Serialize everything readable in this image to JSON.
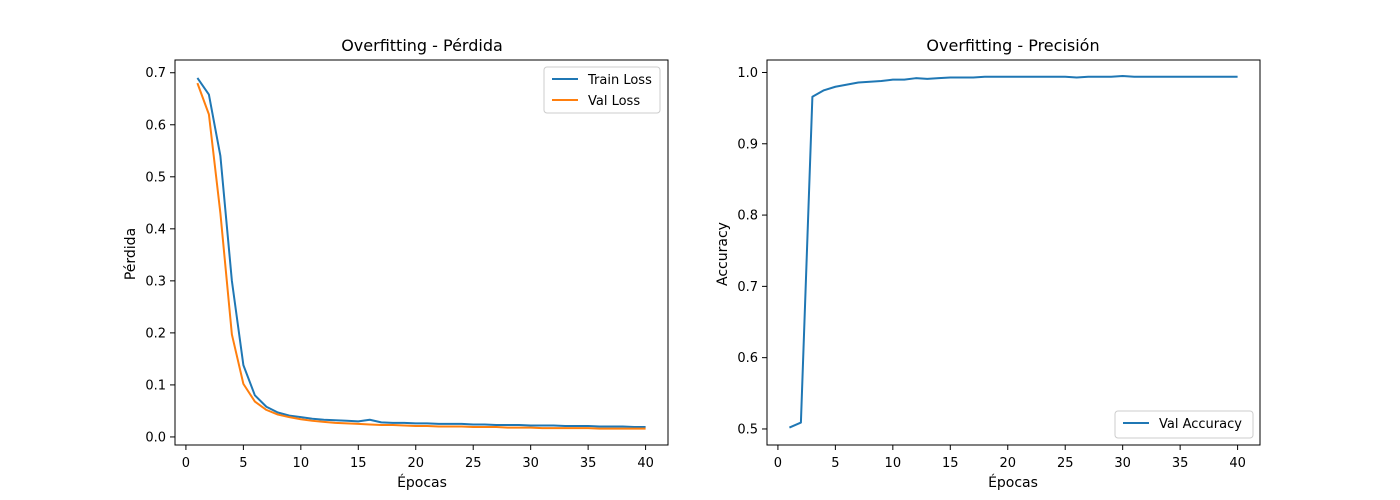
{
  "chart_data": [
    {
      "type": "line",
      "title": "Overfitting - Pérdida",
      "xlabel": "Épocas",
      "ylabel": "Pérdida",
      "xlim": [
        -0.95,
        41.95
      ],
      "ylim": [
        -0.0155,
        0.7245
      ],
      "xticks": [
        "0",
        "5",
        "10",
        "15",
        "20",
        "25",
        "30",
        "35",
        "40"
      ],
      "yticks": [
        "0.0",
        "0.1",
        "0.2",
        "0.3",
        "0.4",
        "0.5",
        "0.6",
        "0.7"
      ],
      "legend": "top-right",
      "grid": false,
      "x": [
        1,
        2,
        3,
        4,
        5,
        6,
        7,
        8,
        9,
        10,
        11,
        12,
        13,
        14,
        15,
        16,
        17,
        18,
        19,
        20,
        21,
        22,
        23,
        24,
        25,
        26,
        27,
        28,
        29,
        30,
        31,
        32,
        33,
        34,
        35,
        36,
        37,
        38,
        39,
        40
      ],
      "series": [
        {
          "name": "Train Loss",
          "color": "#1f77b4",
          "values": [
            0.69,
            0.658,
            0.54,
            0.3,
            0.138,
            0.08,
            0.058,
            0.047,
            0.041,
            0.038,
            0.035,
            0.033,
            0.032,
            0.031,
            0.03,
            0.033,
            0.028,
            0.027,
            0.027,
            0.026,
            0.026,
            0.025,
            0.025,
            0.025,
            0.024,
            0.024,
            0.023,
            0.023,
            0.023,
            0.022,
            0.022,
            0.022,
            0.021,
            0.021,
            0.021,
            0.02,
            0.02,
            0.02,
            0.019,
            0.019
          ]
        },
        {
          "name": "Val Loss",
          "color": "#ff7f0e",
          "values": [
            0.68,
            0.62,
            0.43,
            0.197,
            0.102,
            0.068,
            0.052,
            0.043,
            0.038,
            0.034,
            0.031,
            0.029,
            0.027,
            0.026,
            0.025,
            0.024,
            0.023,
            0.023,
            0.022,
            0.021,
            0.021,
            0.02,
            0.02,
            0.02,
            0.019,
            0.019,
            0.019,
            0.018,
            0.018,
            0.018,
            0.017,
            0.017,
            0.017,
            0.017,
            0.017,
            0.016,
            0.016,
            0.016,
            0.016,
            0.016
          ]
        }
      ]
    },
    {
      "type": "line",
      "title": "Overfitting - Precisión",
      "xlabel": "Épocas",
      "ylabel": "Accuracy",
      "xlim": [
        -0.95,
        41.95
      ],
      "ylim": [
        0.4775,
        1.0175
      ],
      "xticks": [
        "0",
        "5",
        "10",
        "15",
        "20",
        "25",
        "30",
        "35",
        "40"
      ],
      "yticks": [
        "0.5",
        "0.6",
        "0.7",
        "0.8",
        "0.9",
        "1.0"
      ],
      "legend": "bottom-right",
      "grid": false,
      "x": [
        1,
        2,
        3,
        4,
        5,
        6,
        7,
        8,
        9,
        10,
        11,
        12,
        13,
        14,
        15,
        16,
        17,
        18,
        19,
        20,
        21,
        22,
        23,
        24,
        25,
        26,
        27,
        28,
        29,
        30,
        31,
        32,
        33,
        34,
        35,
        36,
        37,
        38,
        39,
        40
      ],
      "series": [
        {
          "name": "Val Accuracy",
          "color": "#1f77b4",
          "values": [
            0.502,
            0.509,
            0.966,
            0.975,
            0.98,
            0.983,
            0.986,
            0.987,
            0.988,
            0.99,
            0.99,
            0.992,
            0.991,
            0.992,
            0.993,
            0.993,
            0.993,
            0.994,
            0.994,
            0.994,
            0.994,
            0.994,
            0.994,
            0.994,
            0.994,
            0.993,
            0.994,
            0.994,
            0.994,
            0.995,
            0.994,
            0.994,
            0.994,
            0.994,
            0.994,
            0.994,
            0.994,
            0.994,
            0.994,
            0.994
          ]
        }
      ]
    }
  ]
}
